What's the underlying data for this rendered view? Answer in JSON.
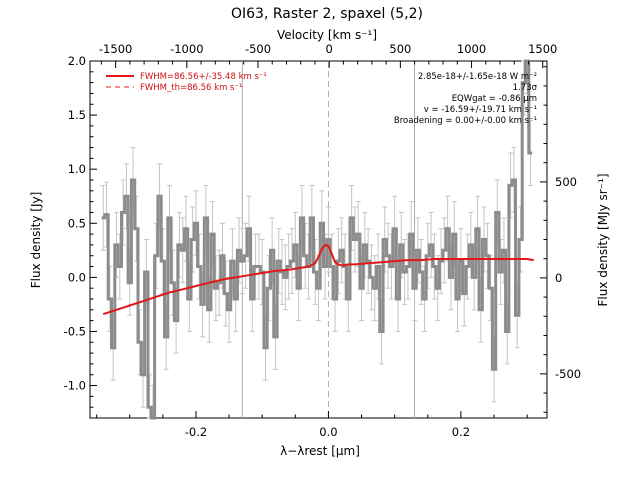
{
  "chart_data": {
    "type": "line",
    "title": "OI63, Raster 2, spaxel (5,2)",
    "xlabel": "λ−λrest [μm]",
    "ylabel": "Flux density [Jy]",
    "x2label": "Velocity [km s⁻¹]",
    "y2label": "Flux density [MJy sr⁻¹]",
    "xlim": [
      -0.36,
      0.33
    ],
    "ylim": [
      -1.3,
      2.0
    ],
    "x2lim": [
      -1680,
      1530
    ],
    "y2lim": [
      -730,
      1130
    ],
    "x_ticks": [
      "-0.2",
      "0.0",
      "0.2"
    ],
    "y_ticks": [
      "-1.0",
      "-0.5",
      "0.0",
      "0.5",
      "1.0",
      "1.5",
      "2.0"
    ],
    "x2_ticks": [
      "-1500",
      "-1000",
      "-500",
      "0",
      "500",
      "1000",
      "1500"
    ],
    "y2_ticks": [
      "-500",
      "0",
      "500"
    ],
    "vertical_lines": [
      -0.13,
      0.0,
      0.13
    ],
    "legend": {
      "position": "top-left",
      "entries": [
        "FWHM=86.56+/-35.48 km s⁻¹",
        "FWHM_th=86.56 km s⁻¹"
      ]
    },
    "annotations": [
      "2.85e-18+/-1.65e-18 W m⁻²",
      "1.73σ",
      "EQWgat = -0.86 μm",
      "v = -16.59+/-19.71 km s⁻¹",
      "Broadening = 0.00+/-0.00 km s⁻¹"
    ],
    "series": [
      {
        "style": "steps-with-errorbars",
        "color": "#8c8c8c",
        "x": [
          -0.34,
          -0.335,
          -0.33,
          -0.325,
          -0.32,
          -0.315,
          -0.31,
          -0.305,
          -0.3,
          -0.295,
          -0.29,
          -0.285,
          -0.28,
          -0.275,
          -0.27,
          -0.265,
          -0.26,
          -0.255,
          -0.25,
          -0.245,
          -0.24,
          -0.235,
          -0.23,
          -0.225,
          -0.22,
          -0.215,
          -0.21,
          -0.205,
          -0.2,
          -0.195,
          -0.19,
          -0.185,
          -0.18,
          -0.175,
          -0.17,
          -0.165,
          -0.16,
          -0.155,
          -0.15,
          -0.145,
          -0.14,
          -0.135,
          -0.13,
          -0.125,
          -0.12,
          -0.115,
          -0.11,
          -0.105,
          -0.1,
          -0.095,
          -0.09,
          -0.085,
          -0.08,
          -0.075,
          -0.07,
          -0.065,
          -0.06,
          -0.055,
          -0.05,
          -0.045,
          -0.04,
          -0.035,
          -0.03,
          -0.025,
          -0.02,
          -0.015,
          -0.01,
          -0.005,
          0.0,
          0.005,
          0.01,
          0.015,
          0.02,
          0.025,
          0.03,
          0.035,
          0.04,
          0.045,
          0.05,
          0.055,
          0.06,
          0.065,
          0.07,
          0.075,
          0.08,
          0.085,
          0.09,
          0.095,
          0.1,
          0.105,
          0.11,
          0.115,
          0.12,
          0.125,
          0.13,
          0.135,
          0.14,
          0.145,
          0.15,
          0.155,
          0.16,
          0.165,
          0.17,
          0.175,
          0.18,
          0.185,
          0.19,
          0.195,
          0.2,
          0.205,
          0.21,
          0.215,
          0.22,
          0.225,
          0.23,
          0.235,
          0.24,
          0.245,
          0.25,
          0.255,
          0.26,
          0.265,
          0.27,
          0.275,
          0.28,
          0.285,
          0.29,
          0.295,
          0.3,
          0.305
        ],
        "y": [
          0.55,
          0.58,
          -0.2,
          -0.65,
          0.3,
          0.1,
          0.6,
          0.75,
          -0.05,
          0.9,
          0.45,
          -0.6,
          -0.9,
          0.05,
          -1.2,
          -1.3,
          0.2,
          0.75,
          0.15,
          -0.55,
          0.55,
          -0.05,
          -0.4,
          0.3,
          0.25,
          0.45,
          -0.2,
          0.35,
          0.5,
          0.1,
          -0.25,
          0.55,
          -0.3,
          0.4,
          -0.1,
          -0.05,
          0.2,
          -0.15,
          -0.3,
          0.15,
          -0.2,
          0.25,
          0.15,
          0.2,
          0.45,
          -0.2,
          0.1,
          0.1,
          0.05,
          -0.65,
          -0.1,
          0.25,
          -0.55,
          0.15,
          0.05,
          0.0,
          0.1,
          0.15,
          0.3,
          -0.1,
          0.55,
          0.2,
          0.1,
          0.55,
          0.05,
          -0.1,
          0.5,
          0.1,
          0.35,
          0.1,
          -0.2,
          0.15,
          0.25,
          0.1,
          -0.2,
          0.55,
          0.35,
          0.4,
          -0.1,
          0.3,
          0.15,
          0.0,
          -0.1,
          0.1,
          -0.5,
          0.35,
          0.2,
          0.1,
          0.45,
          -0.2,
          0.3,
          0.05,
          0.1,
          0.4,
          -0.1,
          0.25,
          0.05,
          -0.2,
          0.2,
          0.3,
          0.1,
          -0.1,
          0.15,
          0.25,
          0.45,
          0.0,
          0.4,
          -0.2,
          0.15,
          -0.15,
          0.1,
          0.3,
          0.0,
          0.45,
          -0.3,
          0.35,
          0.2,
          -0.1,
          -0.85,
          0.6,
          0.05,
          0.25,
          -0.5,
          0.85,
          0.9,
          -0.35,
          0.35,
          1.8,
          2.0,
          1.15
        ]
      },
      {
        "name": "FWHM=86.56+/-35.48 km s⁻¹",
        "style": "line",
        "color": "#e01818",
        "x": [
          -0.34,
          -0.32,
          -0.3,
          -0.28,
          -0.26,
          -0.24,
          -0.22,
          -0.2,
          -0.18,
          -0.16,
          -0.14,
          -0.12,
          -0.1,
          -0.08,
          -0.06,
          -0.04,
          -0.03,
          -0.02,
          -0.015,
          -0.01,
          -0.005,
          0.0,
          0.005,
          0.01,
          0.015,
          0.02,
          0.03,
          0.04,
          0.06,
          0.08,
          0.1,
          0.12,
          0.14,
          0.16,
          0.18,
          0.2,
          0.22,
          0.24,
          0.26,
          0.28,
          0.3,
          0.31
        ],
        "y": [
          -0.34,
          -0.3,
          -0.26,
          -0.22,
          -0.18,
          -0.14,
          -0.11,
          -0.08,
          -0.05,
          -0.02,
          0.0,
          0.02,
          0.04,
          0.06,
          0.07,
          0.09,
          0.1,
          0.13,
          0.19,
          0.26,
          0.3,
          0.29,
          0.22,
          0.14,
          0.12,
          0.11,
          0.12,
          0.12,
          0.13,
          0.14,
          0.15,
          0.16,
          0.16,
          0.17,
          0.17,
          0.17,
          0.17,
          0.17,
          0.17,
          0.17,
          0.17,
          0.16
        ]
      }
    ]
  }
}
